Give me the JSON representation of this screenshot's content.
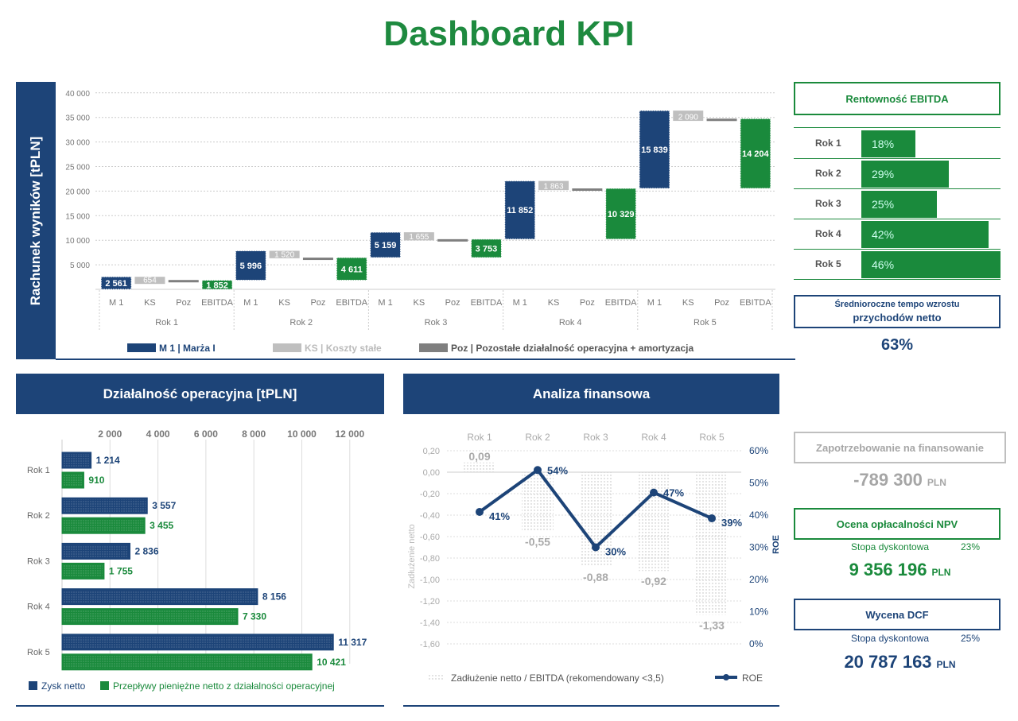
{
  "title": "Dashboard KPI",
  "colors": {
    "navy": "#1d4478",
    "green": "#1a8a3c",
    "gray": "#bfbfbf",
    "dark_gray": "#7f7f7f"
  },
  "waterfall": {
    "ylabel": "Rachunek wyników [tPLN]",
    "yticks": [
      "5 000",
      "10 000",
      "15 000",
      "20 000",
      "25 000",
      "30 000",
      "35 000",
      "40 000"
    ],
    "item_labels": [
      "M 1",
      "KS",
      "Poz",
      "EBITDA"
    ],
    "groups": [
      "Rok 1",
      "Rok 2",
      "Rok 3",
      "Rok 4",
      "Rok 5"
    ],
    "legend": [
      "M 1 | Marża I",
      "KS | Koszty stałe",
      "Poz | Pozostałe działalność operacyjna + amortyzacja"
    ]
  },
  "chart_data": [
    {
      "type": "waterfall",
      "ylim": [
        0,
        40000
      ],
      "categories": [
        "Rok 1",
        "Rok 2",
        "Rok 3",
        "Rok 4",
        "Rok 5"
      ],
      "series": [
        {
          "name": "M 1 | Marża I",
          "values": [
            2561,
            5996,
            5159,
            11852,
            15839
          ],
          "labels": [
            "2 561",
            "5 996",
            "5 159",
            "11 852",
            "15 839"
          ]
        },
        {
          "name": "KS | Koszty stałe",
          "values": [
            654,
            1520,
            1655,
            1863,
            2090
          ],
          "labels": [
            "654",
            "1 520",
            "1 655",
            "1 863",
            "2 090"
          ]
        },
        {
          "name": "EBITDA",
          "values": [
            1852,
            4611,
            3753,
            10329,
            14204
          ],
          "labels": [
            "1 852",
            "4 611",
            "3 753",
            "10 329",
            "14 204"
          ]
        }
      ]
    },
    {
      "type": "bar",
      "orientation": "horizontal",
      "title": "Działalność operacyjna [tPLN]",
      "xlim": [
        0,
        12000
      ],
      "xticks": [
        "2 000",
        "4 000",
        "6 000",
        "8 000",
        "10 000",
        "12 000"
      ],
      "categories": [
        "Rok 1",
        "Rok 2",
        "Rok 3",
        "Rok 4",
        "Rok 5"
      ],
      "series": [
        {
          "name": "Zysk netto",
          "values": [
            1214,
            3557,
            2836,
            8156,
            11317
          ],
          "labels": [
            "1 214",
            "3 557",
            "2 836",
            "8 156",
            "11 317"
          ]
        },
        {
          "name": "Przepływy pieniężne netto z działalności operacyjnej",
          "values": [
            910,
            3455,
            1755,
            7330,
            10421
          ],
          "labels": [
            "910",
            "3 455",
            "1 755",
            "7 330",
            "10 421"
          ]
        }
      ]
    },
    {
      "type": "bar+line",
      "title": "Analiza finansowa",
      "categories": [
        "Rok 1",
        "Rok 2",
        "Rok 3",
        "Rok 4",
        "Rok 5"
      ],
      "ylabel_left": "Zadłużenie netto",
      "ylabel_right": "ROE",
      "ylim_left": [
        -1.6,
        0.2
      ],
      "ylim_right": [
        0,
        60
      ],
      "yticks_left": [
        "0,20",
        "0,00",
        "-0,20",
        "-0,40",
        "-0,60",
        "-0,80",
        "-1,00",
        "-1,20",
        "-1,40",
        "-1,60"
      ],
      "yticks_right": [
        "60%",
        "50%",
        "40%",
        "30%",
        "20%",
        "10%",
        "0%"
      ],
      "series": [
        {
          "name": "Zadłużenie netto / EBITDA (rekomendowany <3,5)",
          "type": "bar",
          "values": [
            0.09,
            -0.55,
            -0.88,
            -0.92,
            -1.33
          ],
          "labels": [
            "0,09",
            "-0,55",
            "-0,88",
            "-0,92",
            "-1,33"
          ]
        },
        {
          "name": "ROE",
          "type": "line",
          "values": [
            41,
            54,
            30,
            47,
            39
          ],
          "labels": [
            "41%",
            "54%",
            "30%",
            "47%",
            "39%"
          ]
        }
      ]
    }
  ],
  "ebitda_margin": {
    "title": "Rentowność EBITDA",
    "rows": [
      {
        "label": "Rok 1",
        "value": "18%",
        "pct": 18
      },
      {
        "label": "Rok 2",
        "value": "29%",
        "pct": 29
      },
      {
        "label": "Rok 3",
        "value": "25%",
        "pct": 25
      },
      {
        "label": "Rok 4",
        "value": "42%",
        "pct": 42
      },
      {
        "label": "Rok 5",
        "value": "46%",
        "pct": 46
      }
    ]
  },
  "growth": {
    "title1": "Średnioroczne tempo wzrostu",
    "title2": "przychodów netto",
    "value": "63%"
  },
  "financing": {
    "title": "Zapotrzebowanie na finansowanie",
    "value": "-789 300",
    "unit": "PLN"
  },
  "npv": {
    "title": "Ocena opłacalności NPV",
    "rate_label": "Stopa dyskontowa",
    "rate": "23%",
    "value": "9 356 196",
    "unit": "PLN"
  },
  "dcf": {
    "title": "Wycena DCF",
    "rate_label": "Stopa dyskontowa",
    "rate": "25%",
    "value": "20 787 163",
    "unit": "PLN"
  }
}
